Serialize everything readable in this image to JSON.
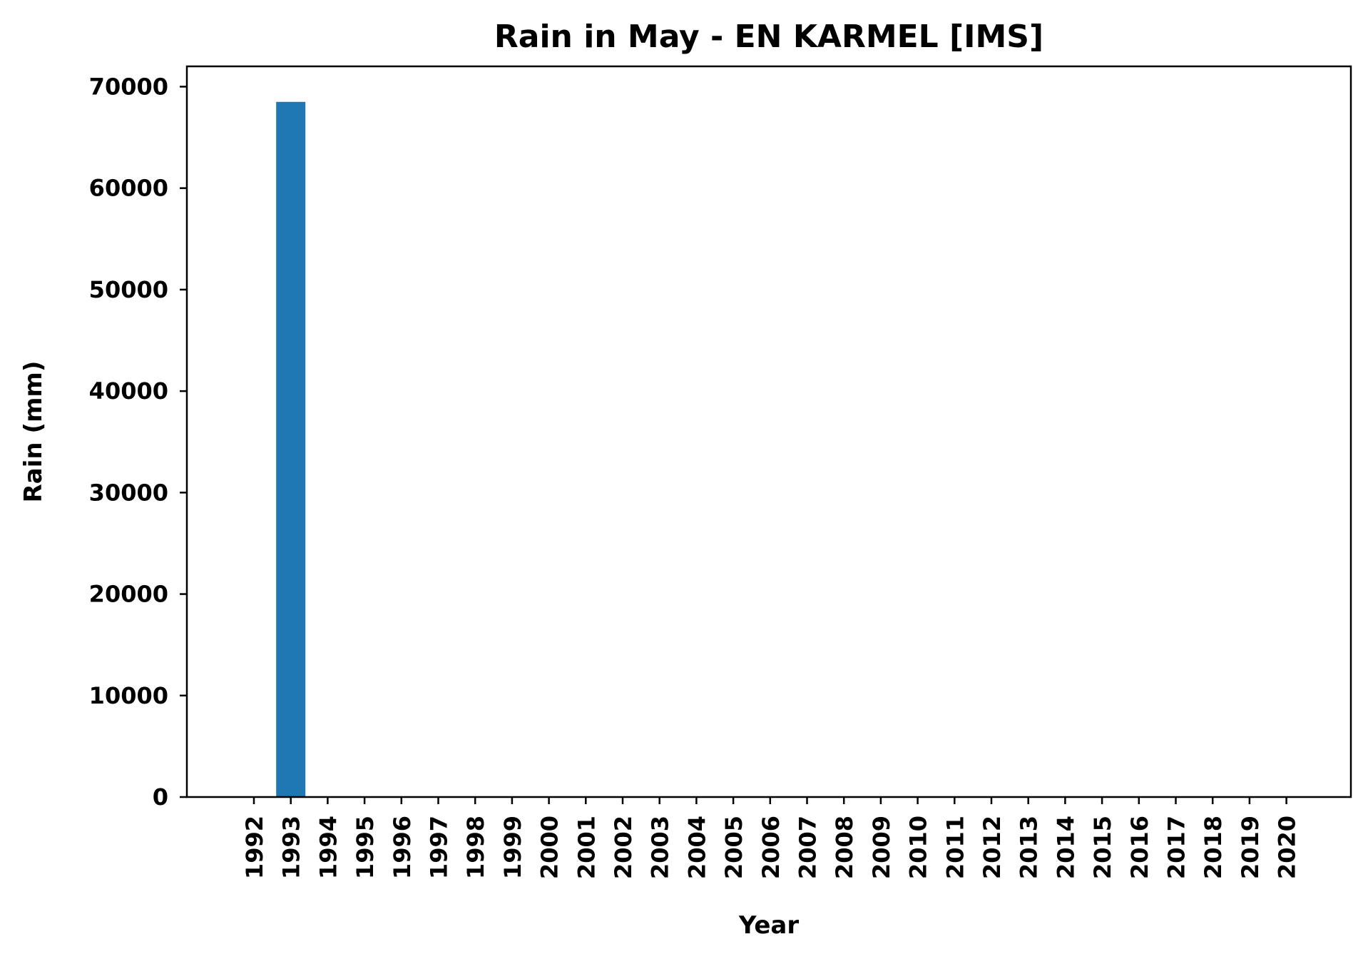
{
  "chart_data": {
    "type": "bar",
    "title": "Rain in May - EN KARMEL [IMS]",
    "xlabel": "Year",
    "ylabel": "Rain (mm)",
    "categories": [
      "1992",
      "1993",
      "1994",
      "1995",
      "1996",
      "1997",
      "1998",
      "1999",
      "2000",
      "2001",
      "2002",
      "2003",
      "2004",
      "2005",
      "2006",
      "2007",
      "2008",
      "2009",
      "2010",
      "2011",
      "2012",
      "2013",
      "2014",
      "2015",
      "2016",
      "2017",
      "2018",
      "2019",
      "2020"
    ],
    "values": [
      0,
      68500,
      0,
      0,
      0,
      0,
      0,
      0,
      0,
      0,
      0,
      0,
      0,
      0,
      0,
      0,
      0,
      0,
      0,
      0,
      0,
      0,
      0,
      0,
      0,
      0,
      0,
      0,
      0
    ],
    "ylim": [
      0,
      72000
    ],
    "yticks": [
      0,
      10000,
      20000,
      30000,
      40000,
      50000,
      60000,
      70000
    ],
    "grid": false,
    "bar_color": "#1f77b4"
  }
}
